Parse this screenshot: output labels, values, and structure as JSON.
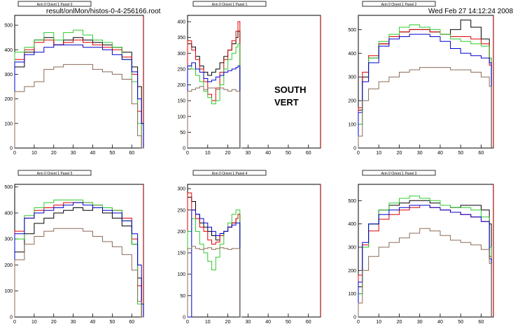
{
  "header": {
    "file": "result/onlMon/histos-0-4-256166.root",
    "date": "Wed Feb 27 14:12:24 2008"
  },
  "notes": [
    "SOUTH",
    "VERT"
  ],
  "colors": {
    "black": "#000000",
    "red": "#e00000",
    "green": "#2ecc2e",
    "blue": "#0000d0",
    "brown": "#8b6b58",
    "frame_edge": "#a01010"
  },
  "chart_data": [
    {
      "type": "line",
      "title": "Arm 0 Orient 1 Panel 0",
      "xlim": [
        0,
        66
      ],
      "ylim": [
        0,
        540
      ],
      "x_ticks": [
        0,
        10,
        20,
        30,
        40,
        50,
        60
      ],
      "y_ticks": [
        0,
        100,
        200,
        300,
        400,
        500
      ],
      "bins_x": [
        0,
        5,
        10,
        15,
        20,
        25,
        30,
        35,
        40,
        45,
        50,
        55,
        60,
        63,
        65
      ],
      "series": [
        {
          "color": "black",
          "values": [
            330,
            390,
            440,
            450,
            420,
            440,
            450,
            440,
            430,
            420,
            410,
            390,
            330,
            250,
            100
          ]
        },
        {
          "color": "red",
          "values": [
            360,
            400,
            430,
            440,
            420,
            430,
            440,
            430,
            420,
            410,
            400,
            370,
            300,
            150,
            0
          ]
        },
        {
          "color": "green",
          "values": [
            390,
            410,
            440,
            470,
            440,
            470,
            480,
            460,
            440,
            430,
            410,
            360,
            270,
            100,
            0
          ]
        },
        {
          "color": "blue",
          "values": [
            350,
            380,
            390,
            410,
            420,
            420,
            420,
            410,
            410,
            400,
            380,
            360,
            310,
            200,
            100
          ]
        },
        {
          "color": "brown",
          "values": [
            230,
            250,
            270,
            320,
            330,
            340,
            340,
            340,
            320,
            310,
            300,
            280,
            180,
            50,
            0
          ]
        }
      ]
    },
    {
      "type": "line",
      "title": "Arm 0 Orient 1 Panel 1",
      "xlim": [
        0,
        66
      ],
      "ylim": [
        0,
        420
      ],
      "x_ticks": [
        0,
        10,
        20,
        30,
        40,
        50,
        60
      ],
      "y_ticks": [
        0,
        50,
        100,
        150,
        200,
        250,
        300,
        350,
        400
      ],
      "bins_x": [
        0,
        2,
        4,
        6,
        8,
        10,
        12,
        14,
        16,
        18,
        20,
        22,
        24,
        25,
        26
      ],
      "series": [
        {
          "color": "black",
          "values": [
            330,
            320,
            290,
            260,
            240,
            230,
            240,
            250,
            270,
            290,
            310,
            330,
            350,
            370,
            0
          ]
        },
        {
          "color": "red",
          "values": [
            340,
            310,
            280,
            250,
            210,
            170,
            150,
            190,
            240,
            280,
            310,
            340,
            370,
            400,
            0
          ]
        },
        {
          "color": "green",
          "values": [
            260,
            250,
            230,
            210,
            180,
            160,
            140,
            150,
            200,
            250,
            280,
            300,
            320,
            330,
            0
          ]
        },
        {
          "color": "blue",
          "values": [
            260,
            270,
            250,
            240,
            220,
            210,
            215,
            225,
            230,
            240,
            245,
            250,
            255,
            260,
            0
          ]
        },
        {
          "color": "brown",
          "values": [
            180,
            185,
            190,
            195,
            185,
            190,
            190,
            185,
            190,
            185,
            180,
            185,
            180,
            180,
            0
          ]
        }
      ]
    },
    {
      "type": "line",
      "title": "Arm 0 Orient 1 Panel 2",
      "xlim": [
        0,
        66
      ],
      "ylim": [
        0,
        560
      ],
      "x_ticks": [
        0,
        10,
        20,
        30,
        40,
        50,
        60
      ],
      "y_ticks": [
        0,
        100,
        200,
        300,
        400,
        500
      ],
      "bins_x": [
        0,
        2,
        5,
        10,
        15,
        20,
        25,
        30,
        35,
        40,
        45,
        50,
        55,
        60,
        64
      ],
      "series": [
        {
          "color": "black",
          "values": [
            160,
            300,
            380,
            440,
            470,
            490,
            500,
            500,
            490,
            480,
            500,
            540,
            510,
            460,
            380
          ]
        },
        {
          "color": "red",
          "values": [
            170,
            320,
            390,
            440,
            470,
            490,
            500,
            500,
            490,
            480,
            470,
            470,
            460,
            440,
            350
          ]
        },
        {
          "color": "green",
          "values": [
            100,
            280,
            380,
            450,
            480,
            510,
            520,
            510,
            500,
            480,
            460,
            450,
            440,
            430,
            380
          ]
        },
        {
          "color": "blue",
          "values": [
            150,
            280,
            360,
            430,
            460,
            470,
            480,
            480,
            470,
            450,
            420,
            400,
            390,
            380,
            360
          ]
        },
        {
          "color": "brown",
          "values": [
            50,
            200,
            250,
            280,
            300,
            320,
            330,
            340,
            340,
            340,
            330,
            330,
            320,
            300,
            260
          ]
        }
      ]
    },
    {
      "type": "line",
      "title": "Arm 0 Orient 1 Panel 5",
      "xlim": [
        0,
        66
      ],
      "ylim": [
        0,
        510
      ],
      "x_ticks": [
        0,
        10,
        20,
        30,
        40,
        50,
        60
      ],
      "y_ticks": [
        0,
        100,
        200,
        300,
        400,
        500
      ],
      "bins_x": [
        0,
        5,
        10,
        15,
        20,
        25,
        30,
        35,
        40,
        45,
        50,
        55,
        60,
        63,
        65
      ],
      "series": [
        {
          "color": "black",
          "values": [
            250,
            320,
            360,
            380,
            400,
            410,
            420,
            410,
            420,
            400,
            380,
            350,
            280,
            150,
            0
          ]
        },
        {
          "color": "red",
          "values": [
            330,
            380,
            410,
            420,
            430,
            440,
            440,
            440,
            430,
            420,
            410,
            380,
            300,
            120,
            0
          ]
        },
        {
          "color": "green",
          "values": [
            300,
            390,
            420,
            440,
            450,
            450,
            450,
            440,
            430,
            420,
            410,
            370,
            280,
            50,
            0
          ]
        },
        {
          "color": "blue",
          "values": [
            320,
            380,
            400,
            410,
            420,
            430,
            440,
            430,
            420,
            410,
            400,
            370,
            320,
            200,
            50
          ]
        },
        {
          "color": "brown",
          "values": [
            220,
            280,
            310,
            330,
            340,
            340,
            340,
            330,
            310,
            290,
            270,
            240,
            180,
            60,
            0
          ]
        }
      ]
    },
    {
      "type": "line",
      "title": "Arm 0 Orient 1 Panel 4",
      "xlim": [
        0,
        66
      ],
      "ylim": [
        0,
        310
      ],
      "x_ticks": [
        0,
        10,
        20,
        30,
        40,
        50,
        60
      ],
      "y_ticks": [
        0,
        50,
        100,
        150,
        200,
        250,
        300
      ],
      "bins_x": [
        0,
        2,
        4,
        6,
        8,
        10,
        12,
        14,
        16,
        18,
        20,
        22,
        24,
        25,
        26
      ],
      "series": [
        {
          "color": "black",
          "values": [
            280,
            270,
            240,
            220,
            210,
            200,
            190,
            180,
            190,
            200,
            210,
            220,
            230,
            240,
            0
          ]
        },
        {
          "color": "red",
          "values": [
            290,
            250,
            230,
            210,
            200,
            180,
            170,
            175,
            190,
            200,
            210,
            220,
            230,
            240,
            0
          ]
        },
        {
          "color": "green",
          "values": [
            200,
            230,
            200,
            170,
            150,
            130,
            110,
            140,
            170,
            200,
            220,
            240,
            250,
            250,
            0
          ]
        },
        {
          "color": "blue",
          "values": [
            0,
            250,
            240,
            230,
            220,
            210,
            200,
            190,
            195,
            200,
            210,
            215,
            220,
            220,
            0
          ]
        },
        {
          "color": "brown",
          "values": [
            160,
            165,
            160,
            158,
            160,
            162,
            158,
            160,
            162,
            160,
            158,
            160,
            160,
            160,
            0
          ]
        }
      ]
    },
    {
      "type": "line",
      "title": "Arm 0 Orient 1 Panel 3",
      "xlim": [
        0,
        66
      ],
      "ylim": [
        0,
        570
      ],
      "x_ticks": [
        0,
        10,
        20,
        30,
        40,
        50,
        60
      ],
      "y_ticks": [
        0,
        100,
        200,
        300,
        400,
        500
      ],
      "bins_x": [
        0,
        2,
        5,
        10,
        15,
        20,
        25,
        30,
        35,
        40,
        45,
        50,
        55,
        60,
        64
      ],
      "series": [
        {
          "color": "black",
          "values": [
            130,
            300,
            400,
            460,
            480,
            490,
            500,
            500,
            490,
            480,
            470,
            480,
            480,
            460,
            400
          ]
        },
        {
          "color": "red",
          "values": [
            180,
            310,
            370,
            420,
            440,
            460,
            470,
            480,
            470,
            460,
            450,
            440,
            430,
            410,
            260
          ]
        },
        {
          "color": "green",
          "values": [
            100,
            300,
            400,
            460,
            490,
            510,
            520,
            510,
            500,
            480,
            470,
            470,
            460,
            430,
            300
          ]
        },
        {
          "color": "blue",
          "values": [
            150,
            320,
            400,
            440,
            460,
            470,
            480,
            480,
            470,
            460,
            450,
            440,
            430,
            410,
            250
          ]
        },
        {
          "color": "brown",
          "values": [
            60,
            200,
            260,
            300,
            320,
            340,
            360,
            380,
            370,
            350,
            330,
            320,
            310,
            290,
            230
          ]
        }
      ]
    }
  ]
}
